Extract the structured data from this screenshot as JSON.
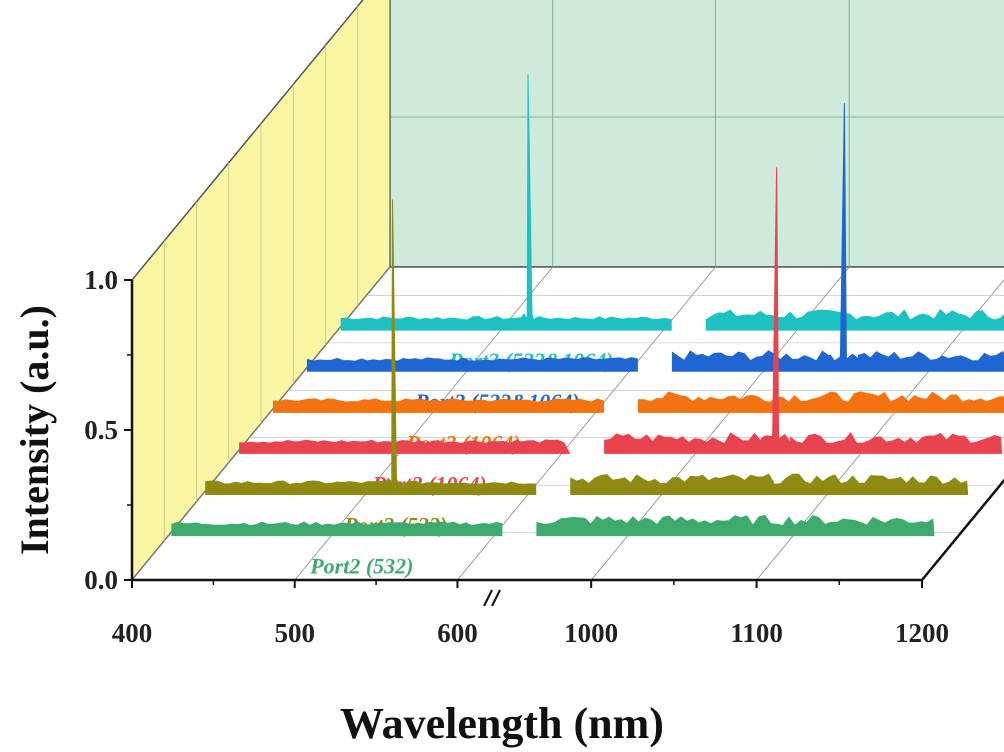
{
  "chart_data": {
    "type": "line",
    "style": "3d-waterfall",
    "xlabel": "Wavelength (nm)",
    "ylabel": "Intensity (a.u.)",
    "xaxis_broken": true,
    "x_segments": [
      {
        "range": [
          400,
          620
        ],
        "ticks": [
          "400",
          "500",
          "600"
        ]
      },
      {
        "range": [
          960,
          1200
        ],
        "ticks": [
          "1000",
          "1100",
          "1200"
        ]
      }
    ],
    "yticks": [
      "0.0",
      "0.5",
      "1.0"
    ],
    "ylim": [
      0,
      1.0
    ],
    "grid": true,
    "back_wall_color": "#cdeadb",
    "side_wall_color": "#fbf6a4",
    "series": [
      {
        "name": "Port2 (532)",
        "color": "#3daa6e",
        "peaks": []
      },
      {
        "name": "Port3 (532)",
        "color": "#8e8a12",
        "peaks": [
          {
            "x": 532,
            "y": 0.95
          }
        ]
      },
      {
        "name": "Port2 (1064)",
        "color": "#e8434f",
        "peaks": [
          {
            "x": 1064,
            "y": 0.92
          }
        ]
      },
      {
        "name": "Port3 (1064)",
        "color": "#f4720f",
        "peaks": []
      },
      {
        "name": "Port2 (532&1064)",
        "color": "#1f66d3",
        "peaks": [
          {
            "x": 1064,
            "y": 0.86
          }
        ]
      },
      {
        "name": "Port3 (532&1064)",
        "color": "#1cc2c2",
        "peaks": [
          {
            "x": 532,
            "y": 0.82
          }
        ]
      }
    ]
  }
}
